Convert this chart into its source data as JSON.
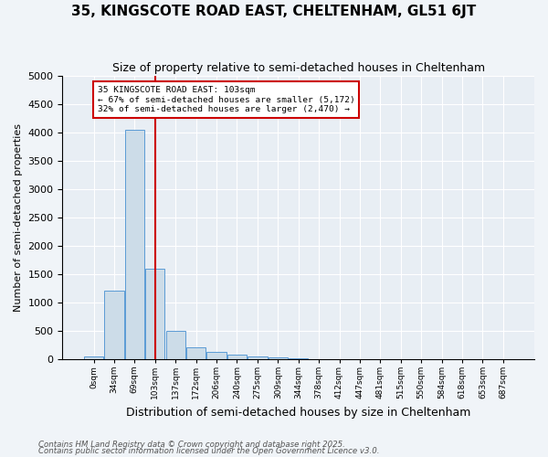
{
  "title": "35, KINGSCOTE ROAD EAST, CHELTENHAM, GL51 6JT",
  "subtitle": "Size of property relative to semi-detached houses in Cheltenham",
  "xlabel": "Distribution of semi-detached houses by size in Cheltenham",
  "ylabel": "Number of semi-detached properties",
  "footnote1": "Contains HM Land Registry data © Crown copyright and database right 2025.",
  "footnote2": "Contains public sector information licensed under the Open Government Licence v3.0.",
  "bar_labels": [
    "0sqm",
    "34sqm",
    "69sqm",
    "103sqm",
    "137sqm",
    "172sqm",
    "206sqm",
    "240sqm",
    "275sqm",
    "309sqm",
    "344sqm",
    "378sqm",
    "412sqm",
    "447sqm",
    "481sqm",
    "515sqm",
    "550sqm",
    "584sqm",
    "618sqm",
    "653sqm",
    "687sqm"
  ],
  "bar_values": [
    50,
    1200,
    4050,
    1600,
    500,
    200,
    130,
    80,
    50,
    30,
    10,
    5,
    3,
    2,
    1,
    1,
    0,
    0,
    0,
    0,
    0
  ],
  "bar_color": "#ccdce8",
  "bar_edge_color": "#5b9bd5",
  "ylim": [
    0,
    5000
  ],
  "yticks": [
    0,
    500,
    1000,
    1500,
    2000,
    2500,
    3000,
    3500,
    4000,
    4500,
    5000
  ],
  "property_idx": 3,
  "property_label": "35 KINGSCOTE ROAD EAST: 103sqm",
  "annotation_line1": "← 67% of semi-detached houses are smaller (5,172)",
  "annotation_line2": "32% of semi-detached houses are larger (2,470) →",
  "red_line_color": "#cc0000",
  "annotation_box_color": "#ffffff",
  "annotation_box_edge": "#cc0000",
  "background_color": "#f0f4f8",
  "plot_bg_color": "#e8eef4"
}
